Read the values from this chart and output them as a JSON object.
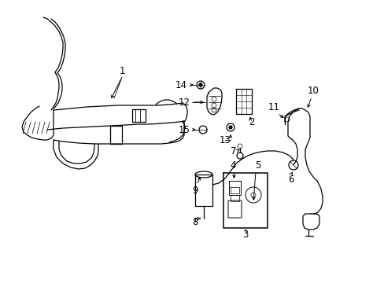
{
  "bg_color": "#ffffff",
  "line_color": "#000000",
  "text_color": "#000000",
  "label_fontsize": 8.5,
  "fig_w": 4.89,
  "fig_h": 3.6,
  "dpi": 100
}
